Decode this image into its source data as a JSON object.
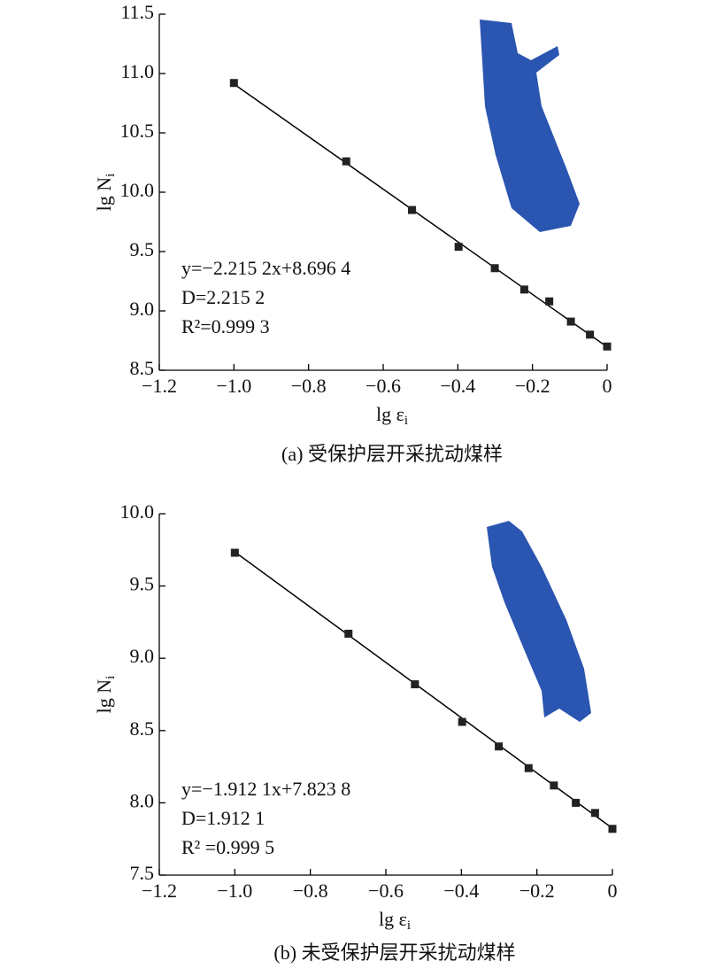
{
  "chart_data": [
    {
      "type": "scatter",
      "x": [
        -1.0,
        -0.699,
        -0.523,
        -0.398,
        -0.301,
        -0.222,
        -0.155,
        -0.097,
        -0.046,
        0
      ],
      "y": [
        10.92,
        10.26,
        9.85,
        9.54,
        9.36,
        9.18,
        9.08,
        8.91,
        8.8,
        8.7
      ],
      "color": "#222222",
      "fit": {
        "slope": -2.2152,
        "intercept": 8.6964
      },
      "xlim": [
        -1.2,
        0
      ],
      "ylim": [
        8.5,
        11.5
      ],
      "xticks": [
        {
          "value": -1.2,
          "label": "−1.2"
        },
        {
          "value": -1.0,
          "label": "−1.0"
        },
        {
          "value": -0.8,
          "label": "−0.8"
        },
        {
          "value": -0.6,
          "label": "−0.6"
        },
        {
          "value": -0.4,
          "label": "−0.4"
        },
        {
          "value": -0.2,
          "label": "−0.2"
        },
        0
      ],
      "yticks": [
        8.5,
        {
          "value": 9,
          "label": "9.0"
        },
        9.5,
        {
          "value": 10,
          "label": "10.0"
        },
        10.5,
        {
          "value": 11,
          "label": "11.0"
        },
        11.5
      ],
      "xlabel": "lg ε",
      "xlabel_sub": "i",
      "ylabel": "lg N",
      "ylabel_sub": "i",
      "annotations": [
        "y=−2.215 2x+8.696 4",
        "D=2.215 2",
        "R²=0.999 3"
      ],
      "caption": "(a) 受保护层开采扰动煤样"
    },
    {
      "type": "scatter",
      "x": [
        -1.0,
        -0.699,
        -0.523,
        -0.398,
        -0.301,
        -0.222,
        -0.155,
        -0.097,
        -0.046,
        0
      ],
      "y": [
        9.73,
        9.17,
        8.82,
        8.56,
        8.39,
        8.24,
        8.12,
        8.0,
        7.93,
        7.82
      ],
      "color": "#222222",
      "fit": {
        "slope": -1.9121,
        "intercept": 7.8238
      },
      "xlim": [
        -1.2,
        0
      ],
      "ylim": [
        7.5,
        10.0
      ],
      "xticks": [
        {
          "value": -1.2,
          "label": "−1.2"
        },
        {
          "value": -1.0,
          "label": "−1.0"
        },
        {
          "value": -0.8,
          "label": "−0.8"
        },
        {
          "value": -0.6,
          "label": "−0.6"
        },
        {
          "value": -0.4,
          "label": "−0.4"
        },
        {
          "value": -0.2,
          "label": "−0.2"
        },
        0
      ],
      "yticks": [
        7.5,
        {
          "value": 8,
          "label": "8.0"
        },
        8.5,
        {
          "value": 9,
          "label": "9.0"
        },
        9.5,
        {
          "value": 10,
          "label": "10.0"
        }
      ],
      "xlabel": "lg ε",
      "xlabel_sub": "i",
      "ylabel": "lg N",
      "ylabel_sub": "i",
      "annotations": [
        "y=−1.912 1x+7.823 8",
        "D=1.912 1",
        "R² =0.999 5"
      ],
      "caption": "(b) 未受保护层开采扰动煤样"
    }
  ]
}
